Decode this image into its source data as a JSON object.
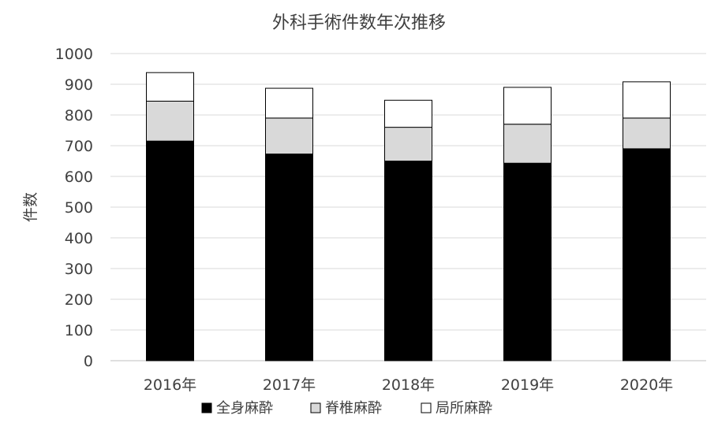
{
  "chart_data": {
    "type": "bar",
    "stacked": true,
    "title": "外科手術件数年次推移",
    "xlabel": "",
    "ylabel": "件数",
    "categories": [
      "2016年",
      "2017年",
      "2018年",
      "2019年",
      "2020年"
    ],
    "ylim": [
      0,
      1000
    ],
    "yticks": [
      0,
      100,
      200,
      300,
      400,
      500,
      600,
      700,
      800,
      900,
      1000
    ],
    "grid": true,
    "legend_position": "bottom",
    "series": [
      {
        "name": "全身麻酔",
        "values": [
          715,
          673,
          650,
          643,
          690
        ],
        "color": "#000000"
      },
      {
        "name": "脊椎麻酔",
        "values": [
          130,
          117,
          110,
          127,
          100
        ],
        "color": "#d9d9d9"
      },
      {
        "name": "局所麻酔",
        "values": [
          93,
          97,
          88,
          120,
          118
        ],
        "color": "#ffffff"
      }
    ]
  }
}
